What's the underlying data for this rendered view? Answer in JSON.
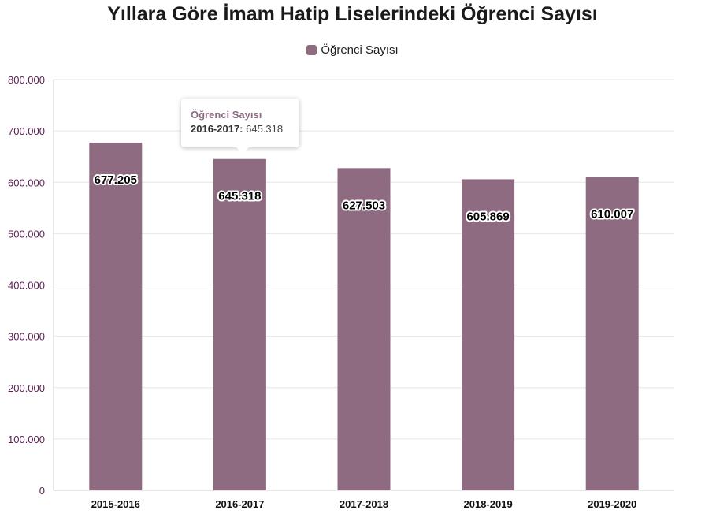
{
  "chart_data": {
    "type": "bar",
    "title": "Yıllara Göre İmam Hatip Liselerindeki Öğrenci Sayısı",
    "categories": [
      "2015-2016",
      "2016-2017",
      "2017-2018",
      "2018-2019",
      "2019-2020"
    ],
    "series": [
      {
        "name": "Öğrenci Sayısı",
        "color": "#8e6b80",
        "values": [
          677205,
          645318,
          627503,
          605869,
          610007
        ],
        "labels": [
          "677.205",
          "645.318",
          "627.503",
          "605.869",
          "610.007"
        ]
      }
    ],
    "y_ticks": [
      {
        "value": 0,
        "label": "0"
      },
      {
        "value": 100000,
        "label": "100.000"
      },
      {
        "value": 200000,
        "label": "200.000"
      },
      {
        "value": 300000,
        "label": "300.000"
      },
      {
        "value": 400000,
        "label": "400.000"
      },
      {
        "value": 500000,
        "label": "500.000"
      },
      {
        "value": 600000,
        "label": "600.000"
      },
      {
        "value": 700000,
        "label": "700.000"
      },
      {
        "value": 800000,
        "label": "800.000"
      }
    ],
    "ylim": [
      0,
      800000
    ],
    "grid": true,
    "legend_position": "top-center"
  },
  "tooltip": {
    "series": "Öğrenci Sayısı",
    "category": "2016-2017:",
    "value": "645.318"
  }
}
